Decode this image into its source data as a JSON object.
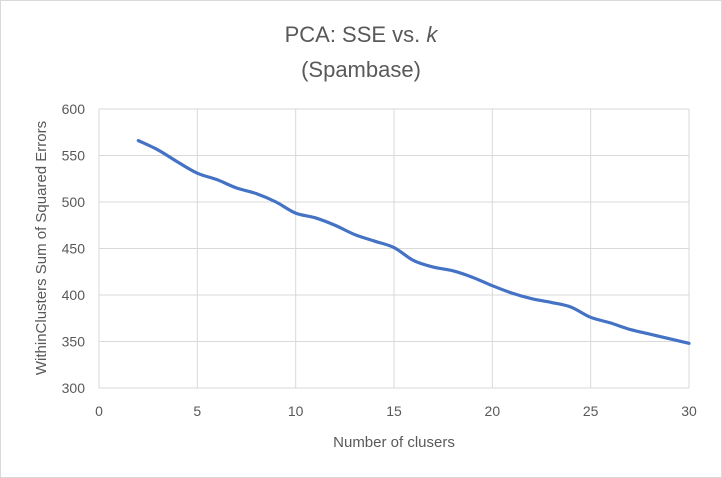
{
  "chart_data": {
    "type": "line",
    "title": "PCA: SSE vs.",
    "title_k": "k",
    "subtitle": "(Spambase)",
    "xlabel": "Number of clusers",
    "ylabel": "WithinClusters Sum of Squared Errors",
    "xlim": [
      0,
      30
    ],
    "ylim": [
      300,
      600
    ],
    "xticks": [
      0,
      5,
      10,
      15,
      20,
      25,
      30
    ],
    "yticks": [
      300,
      350,
      400,
      450,
      500,
      550,
      600
    ],
    "grid": true,
    "legend": "none",
    "series": [
      {
        "color": "#4472c4",
        "x": [
          2,
          3,
          4,
          5,
          6,
          7,
          8,
          9,
          10,
          11,
          12,
          13,
          14,
          15,
          16,
          17,
          18,
          19,
          20,
          21,
          22,
          23,
          24,
          25,
          26,
          27,
          28,
          29,
          30
        ],
        "y": [
          566,
          556,
          543,
          531,
          524,
          515,
          509,
          500,
          488,
          483,
          475,
          465,
          458,
          451,
          437,
          430,
          426,
          419,
          410,
          402,
          396,
          392,
          387,
          376,
          370,
          363,
          358,
          353,
          348
        ]
      }
    ]
  }
}
